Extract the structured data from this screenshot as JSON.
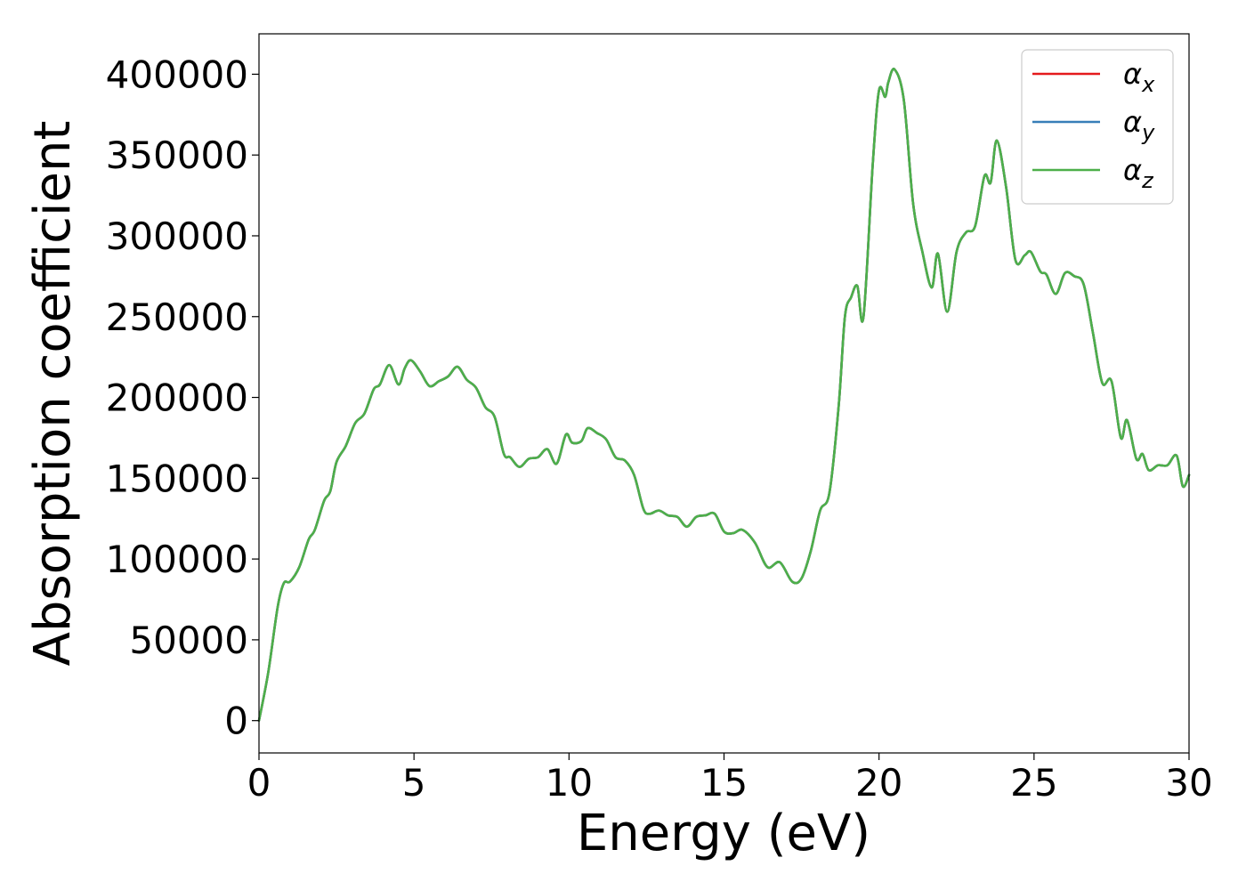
{
  "chart_data": {
    "type": "line",
    "xlabel": "Energy (eV)",
    "ylabel": "Absorption coefficient",
    "xlim": [
      0,
      30
    ],
    "ylim": [
      -20000,
      425000
    ],
    "xticks": [
      0,
      5,
      10,
      15,
      20,
      25,
      30
    ],
    "xtick_labels": [
      "0",
      "5",
      "10",
      "15",
      "20",
      "25",
      "30"
    ],
    "yticks": [
      0,
      50000,
      100000,
      150000,
      200000,
      250000,
      300000,
      350000,
      400000
    ],
    "ytick_labels": [
      "0",
      "50000",
      "100000",
      "150000",
      "200000",
      "250000",
      "300000",
      "350000",
      "400000"
    ],
    "grid": false,
    "legend_position": "top-right",
    "x": [
      0,
      0.3,
      0.6,
      0.8,
      1.0,
      1.3,
      1.6,
      1.8,
      2.1,
      2.3,
      2.5,
      2.8,
      3.1,
      3.4,
      3.7,
      3.9,
      4.2,
      4.5,
      4.7,
      4.9,
      5.2,
      5.5,
      5.8,
      6.1,
      6.4,
      6.7,
      7.0,
      7.3,
      7.6,
      7.9,
      8.1,
      8.4,
      8.7,
      9.0,
      9.3,
      9.6,
      9.9,
      10.1,
      10.4,
      10.6,
      10.9,
      11.2,
      11.5,
      11.8,
      12.1,
      12.4,
      12.6,
      12.9,
      13.2,
      13.5,
      13.8,
      14.1,
      14.4,
      14.7,
      15.0,
      15.3,
      15.6,
      16.0,
      16.4,
      16.8,
      17.2,
      17.5,
      17.8,
      18.1,
      18.4,
      18.7,
      18.9,
      19.1,
      19.3,
      19.5,
      19.8,
      20.0,
      20.2,
      20.3,
      20.5,
      20.8,
      21.1,
      21.4,
      21.7,
      21.9,
      22.2,
      22.5,
      22.8,
      23.1,
      23.4,
      23.6,
      23.8,
      24.1,
      24.4,
      24.7,
      24.9,
      25.2,
      25.4,
      25.7,
      26.0,
      26.3,
      26.6,
      26.9,
      27.2,
      27.5,
      27.8,
      28.0,
      28.3,
      28.5,
      28.7,
      29.0,
      29.3,
      29.6,
      29.8,
      30.0
    ],
    "series": [
      {
        "name": "αx",
        "color": "#e41a1c",
        "values": [
          0,
          30000,
          70000,
          85000,
          86000,
          95000,
          112000,
          118000,
          136000,
          142000,
          160000,
          170000,
          184000,
          190000,
          205000,
          208000,
          220000,
          208000,
          218000,
          223000,
          216000,
          207000,
          210000,
          213000,
          219000,
          211000,
          206000,
          194000,
          188000,
          165000,
          163000,
          157000,
          162000,
          163000,
          168000,
          159000,
          177000,
          172000,
          173000,
          181000,
          178000,
          174000,
          163000,
          161000,
          152000,
          131000,
          128000,
          130000,
          127000,
          126000,
          120000,
          126000,
          127000,
          128000,
          117000,
          116000,
          118000,
          110000,
          95000,
          98000,
          86000,
          88000,
          105000,
          130000,
          141000,
          195000,
          250000,
          262000,
          269000,
          250000,
          345000,
          390000,
          386000,
          395000,
          403000,
          384000,
          320000,
          290000,
          268000,
          289000,
          253000,
          290000,
          302000,
          306000,
          337000,
          333000,
          359000,
          330000,
          285000,
          288000,
          290000,
          278000,
          276000,
          264000,
          277000,
          275000,
          270000,
          240000,
          209000,
          210000,
          175000,
          186000,
          162000,
          165000,
          155000,
          158000,
          158000,
          164000,
          145000,
          152000
        ]
      },
      {
        "name": "αy",
        "color": "#377eb8",
        "values": [
          0,
          30000,
          70000,
          85000,
          86000,
          95000,
          112000,
          118000,
          136000,
          142000,
          160000,
          170000,
          184000,
          190000,
          205000,
          208000,
          220000,
          208000,
          218000,
          223000,
          216000,
          207000,
          210000,
          213000,
          219000,
          211000,
          206000,
          194000,
          188000,
          165000,
          163000,
          157000,
          162000,
          163000,
          168000,
          159000,
          177000,
          172000,
          173000,
          181000,
          178000,
          174000,
          163000,
          161000,
          152000,
          131000,
          128000,
          130000,
          127000,
          126000,
          120000,
          126000,
          127000,
          128000,
          117000,
          116000,
          118000,
          110000,
          95000,
          98000,
          86000,
          88000,
          105000,
          130000,
          141000,
          195000,
          250000,
          262000,
          269000,
          250000,
          345000,
          390000,
          386000,
          395000,
          403000,
          384000,
          320000,
          290000,
          268000,
          289000,
          253000,
          290000,
          302000,
          306000,
          337000,
          333000,
          359000,
          330000,
          285000,
          288000,
          290000,
          278000,
          276000,
          264000,
          277000,
          275000,
          270000,
          240000,
          209000,
          210000,
          175000,
          186000,
          162000,
          165000,
          155000,
          158000,
          158000,
          164000,
          145000,
          152000
        ]
      },
      {
        "name": "αz",
        "color": "#4daf4a",
        "values": [
          0,
          30000,
          70000,
          85000,
          86000,
          95000,
          112000,
          118000,
          136000,
          142000,
          160000,
          170000,
          184000,
          190000,
          205000,
          208000,
          220000,
          208000,
          218000,
          223000,
          216000,
          207000,
          210000,
          213000,
          219000,
          211000,
          206000,
          194000,
          188000,
          165000,
          163000,
          157000,
          162000,
          163000,
          168000,
          159000,
          177000,
          172000,
          173000,
          181000,
          178000,
          174000,
          163000,
          161000,
          152000,
          131000,
          128000,
          130000,
          127000,
          126000,
          120000,
          126000,
          127000,
          128000,
          117000,
          116000,
          118000,
          110000,
          95000,
          98000,
          86000,
          88000,
          105000,
          130000,
          141000,
          195000,
          250000,
          262000,
          269000,
          250000,
          345000,
          390000,
          386000,
          395000,
          403000,
          384000,
          320000,
          290000,
          268000,
          289000,
          253000,
          290000,
          302000,
          306000,
          337000,
          333000,
          359000,
          330000,
          285000,
          288000,
          290000,
          278000,
          276000,
          264000,
          277000,
          275000,
          270000,
          240000,
          209000,
          210000,
          175000,
          186000,
          162000,
          165000,
          155000,
          158000,
          158000,
          164000,
          145000,
          152000
        ]
      }
    ],
    "legend": [
      {
        "symbol": "α",
        "subscript": "x",
        "color": "#e41a1c"
      },
      {
        "symbol": "α",
        "subscript": "y",
        "color": "#377eb8"
      },
      {
        "symbol": "α",
        "subscript": "z",
        "color": "#4daf4a"
      }
    ]
  }
}
